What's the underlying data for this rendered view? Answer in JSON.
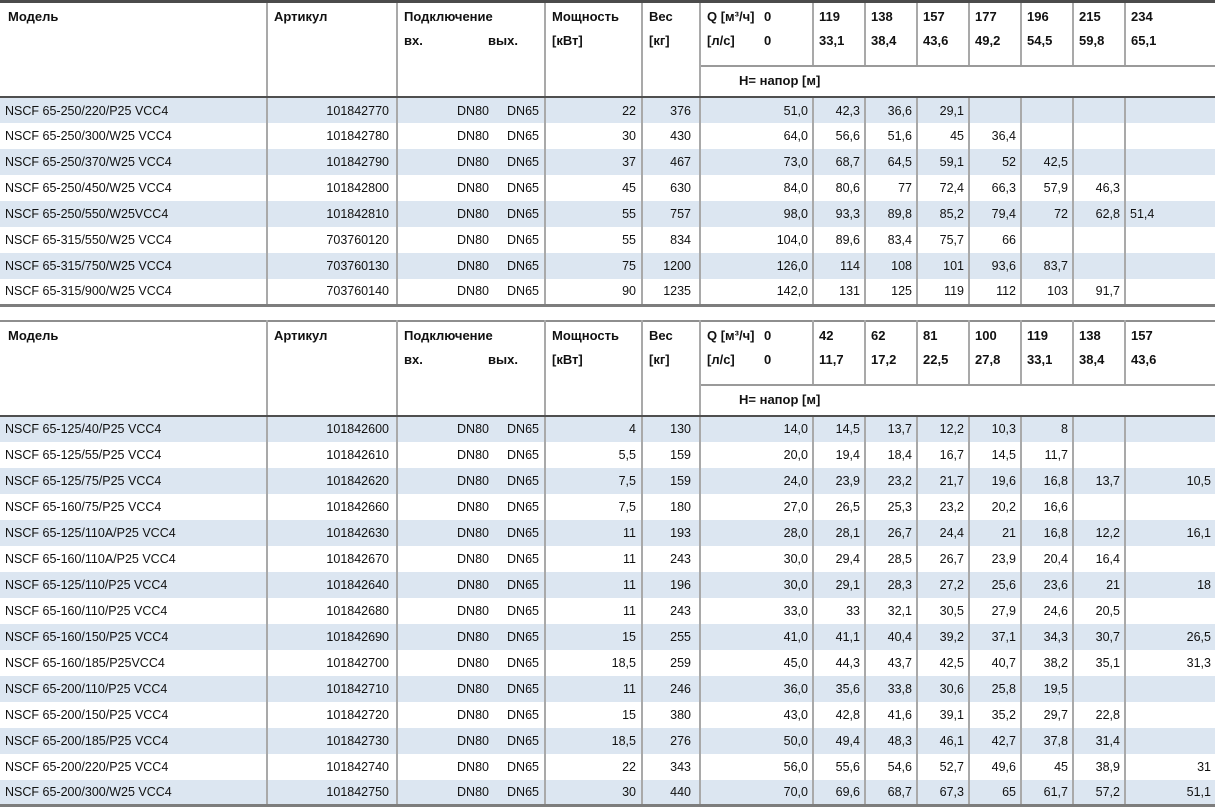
{
  "colors": {
    "stripe": "#dce6f1",
    "border_light": "#a9a9a9",
    "border_dark": "#4f4f4f",
    "border_mid": "#8e8e8e",
    "text": "#111111"
  },
  "labels": {
    "model": "Модель",
    "article": "Артикул",
    "connection": "Подключение",
    "inlet": "вх.",
    "outlet": "вых.",
    "power_line1": "Мощность",
    "power_line2": "[кВт]",
    "weight_line1": "Вес",
    "weight_line2": "[кг]",
    "q_label_m3h": "Q [м³/ч]",
    "q_zero_m3h": "0",
    "q_label_ls": "[л/с]",
    "q_zero_ls": "0",
    "head_label": "Н= напор [м]"
  },
  "tables": [
    {
      "flow_columns": [
        {
          "m3h": "119",
          "ls": "33,1"
        },
        {
          "m3h": "138",
          "ls": "38,4"
        },
        {
          "m3h": "157",
          "ls": "43,6"
        },
        {
          "m3h": "177",
          "ls": "49,2"
        },
        {
          "m3h": "196",
          "ls": "54,5"
        },
        {
          "m3h": "215",
          "ls": "59,8"
        },
        {
          "m3h": "234",
          "ls": "65,1"
        }
      ],
      "rows": [
        {
          "model": "NSCF 65-250/220/P25 VCC4",
          "article": "101842770",
          "inlet": "DN80",
          "outlet": "DN65",
          "power": "22",
          "weight": "376",
          "h": [
            "51,0",
            "42,3",
            "36,6",
            "29,1",
            "",
            "",
            "",
            ""
          ]
        },
        {
          "model": "NSCF 65-250/300/W25 VCC4",
          "article": "101842780",
          "inlet": "DN80",
          "outlet": "DN65",
          "power": "30",
          "weight": "430",
          "h": [
            "64,0",
            "56,6",
            "51,6",
            "45",
            "36,4",
            "",
            "",
            ""
          ]
        },
        {
          "model": "NSCF 65-250/370/W25 VCC4",
          "article": "101842790",
          "inlet": "DN80",
          "outlet": "DN65",
          "power": "37",
          "weight": "467",
          "h": [
            "73,0",
            "68,7",
            "64,5",
            "59,1",
            "52",
            "42,5",
            "",
            ""
          ]
        },
        {
          "model": "NSCF 65-250/450/W25 VCC4",
          "article": "101842800",
          "inlet": "DN80",
          "outlet": "DN65",
          "power": "45",
          "weight": "630",
          "h": [
            "84,0",
            "80,6",
            "77",
            "72,4",
            "66,3",
            "57,9",
            "46,3",
            ""
          ]
        },
        {
          "model": "NSCF 65-250/550/W25VCC4",
          "article": "101842810",
          "inlet": "DN80",
          "outlet": "DN65",
          "power": "55",
          "weight": "757",
          "h": [
            "98,0",
            "93,3",
            "89,8",
            "85,2",
            "79,4",
            "72",
            "62,8",
            "51,4"
          ]
        },
        {
          "model": "NSCF 65-315/550/W25 VCC4",
          "article": "703760120",
          "inlet": "DN80",
          "outlet": "DN65",
          "power": "55",
          "weight": "834",
          "h": [
            "104,0",
            "89,6",
            "83,4",
            "75,7",
            "66",
            "",
            "",
            ""
          ]
        },
        {
          "model": "NSCF 65-315/750/W25 VCC4",
          "article": "703760130",
          "inlet": "DN80",
          "outlet": "DN65",
          "power": "75",
          "weight": "1200",
          "h": [
            "126,0",
            "114",
            "108",
            "101",
            "93,6",
            "83,7",
            "",
            ""
          ]
        },
        {
          "model": "NSCF 65-315/900/W25 VCC4",
          "article": "703760140",
          "inlet": "DN80",
          "outlet": "DN65",
          "power": "90",
          "weight": "1235",
          "h": [
            "142,0",
            "131",
            "125",
            "119",
            "112",
            "103",
            "91,7",
            ""
          ]
        }
      ]
    },
    {
      "flow_columns": [
        {
          "m3h": "42",
          "ls": "11,7"
        },
        {
          "m3h": "62",
          "ls": "17,2"
        },
        {
          "m3h": "81",
          "ls": "22,5"
        },
        {
          "m3h": "100",
          "ls": "27,8"
        },
        {
          "m3h": "119",
          "ls": "33,1"
        },
        {
          "m3h": "138",
          "ls": "38,4"
        },
        {
          "m3h": "157",
          "ls": "43,6"
        }
      ],
      "rows": [
        {
          "model": "NSCF 65-125/40/P25 VCC4",
          "article": "101842600",
          "inlet": "DN80",
          "outlet": "DN65",
          "power": "4",
          "weight": "130",
          "h": [
            "14,0",
            "14,5",
            "13,7",
            "12,2",
            "10,3",
            "8",
            "",
            ""
          ]
        },
        {
          "model": "NSCF 65-125/55/P25 VCC4",
          "article": "101842610",
          "inlet": "DN80",
          "outlet": "DN65",
          "power": "5,5",
          "weight": "159",
          "h": [
            "20,0",
            "19,4",
            "18,4",
            "16,7",
            "14,5",
            "11,7",
            "",
            ""
          ]
        },
        {
          "model": "NSCF 65-125/75/P25 VCC4",
          "article": "101842620",
          "inlet": "DN80",
          "outlet": "DN65",
          "power": "7,5",
          "weight": "159",
          "h": [
            "24,0",
            "23,9",
            "23,2",
            "21,7",
            "19,6",
            "16,8",
            "13,7",
            "10,5"
          ]
        },
        {
          "model": "NSCF 65-160/75/P25 VCC4",
          "article": "101842660",
          "inlet": "DN80",
          "outlet": "DN65",
          "power": "7,5",
          "weight": "180",
          "h": [
            "27,0",
            "26,5",
            "25,3",
            "23,2",
            "20,2",
            "16,6",
            "",
            ""
          ]
        },
        {
          "model": "NSCF 65-125/110A/P25 VCC4",
          "article": "101842630",
          "inlet": "DN80",
          "outlet": "DN65",
          "power": "11",
          "weight": "193",
          "h": [
            "28,0",
            "28,1",
            "26,7",
            "24,4",
            "21",
            "16,8",
            "12,2",
            "16,1"
          ]
        },
        {
          "model": "NSCF 65-160/110A/P25 VCC4",
          "article": "101842670",
          "inlet": "DN80",
          "outlet": "DN65",
          "power": "11",
          "weight": "243",
          "h": [
            "30,0",
            "29,4",
            "28,5",
            "26,7",
            "23,9",
            "20,4",
            "16,4",
            ""
          ]
        },
        {
          "model": "NSCF 65-125/110/P25 VCC4",
          "article": "101842640",
          "inlet": "DN80",
          "outlet": "DN65",
          "power": "11",
          "weight": "196",
          "h": [
            "30,0",
            "29,1",
            "28,3",
            "27,2",
            "25,6",
            "23,6",
            "21",
            "18"
          ]
        },
        {
          "model": "NSCF 65-160/110/P25 VCC4",
          "article": "101842680",
          "inlet": "DN80",
          "outlet": "DN65",
          "power": "11",
          "weight": "243",
          "h": [
            "33,0",
            "33",
            "32,1",
            "30,5",
            "27,9",
            "24,6",
            "20,5",
            ""
          ]
        },
        {
          "model": "NSCF 65-160/150/P25 VCC4",
          "article": "101842690",
          "inlet": "DN80",
          "outlet": "DN65",
          "power": "15",
          "weight": "255",
          "h": [
            "41,0",
            "41,1",
            "40,4",
            "39,2",
            "37,1",
            "34,3",
            "30,7",
            "26,5"
          ]
        },
        {
          "model": "NSCF 65-160/185/P25VCC4",
          "article": "101842700",
          "inlet": "DN80",
          "outlet": "DN65",
          "power": "18,5",
          "weight": "259",
          "h": [
            "45,0",
            "44,3",
            "43,7",
            "42,5",
            "40,7",
            "38,2",
            "35,1",
            "31,3"
          ]
        },
        {
          "model": "NSCF 65-200/110/P25 VCC4",
          "article": "101842710",
          "inlet": "DN80",
          "outlet": "DN65",
          "power": "11",
          "weight": "246",
          "h": [
            "36,0",
            "35,6",
            "33,8",
            "30,6",
            "25,8",
            "19,5",
            "",
            ""
          ]
        },
        {
          "model": "NSCF 65-200/150/P25 VCC4",
          "article": "101842720",
          "inlet": "DN80",
          "outlet": "DN65",
          "power": "15",
          "weight": "380",
          "h": [
            "43,0",
            "42,8",
            "41,6",
            "39,1",
            "35,2",
            "29,7",
            "22,8",
            ""
          ]
        },
        {
          "model": "NSCF 65-200/185/P25 VCC4",
          "article": "101842730",
          "inlet": "DN80",
          "outlet": "DN65",
          "power": "18,5",
          "weight": "276",
          "h": [
            "50,0",
            "49,4",
            "48,3",
            "46,1",
            "42,7",
            "37,8",
            "31,4",
            ""
          ]
        },
        {
          "model": "NSCF 65-200/220/P25 VCC4",
          "article": "101842740",
          "inlet": "DN80",
          "outlet": "DN65",
          "power": "22",
          "weight": "343",
          "h": [
            "56,0",
            "55,6",
            "54,6",
            "52,7",
            "49,6",
            "45",
            "38,9",
            "31"
          ]
        },
        {
          "model": "NSCF 65-200/300/W25 VCC4",
          "article": "101842750",
          "inlet": "DN80",
          "outlet": "DN65",
          "power": "30",
          "weight": "440",
          "h": [
            "70,0",
            "69,6",
            "68,7",
            "67,3",
            "65",
            "61,7",
            "57,2",
            "51,1"
          ]
        }
      ]
    }
  ]
}
